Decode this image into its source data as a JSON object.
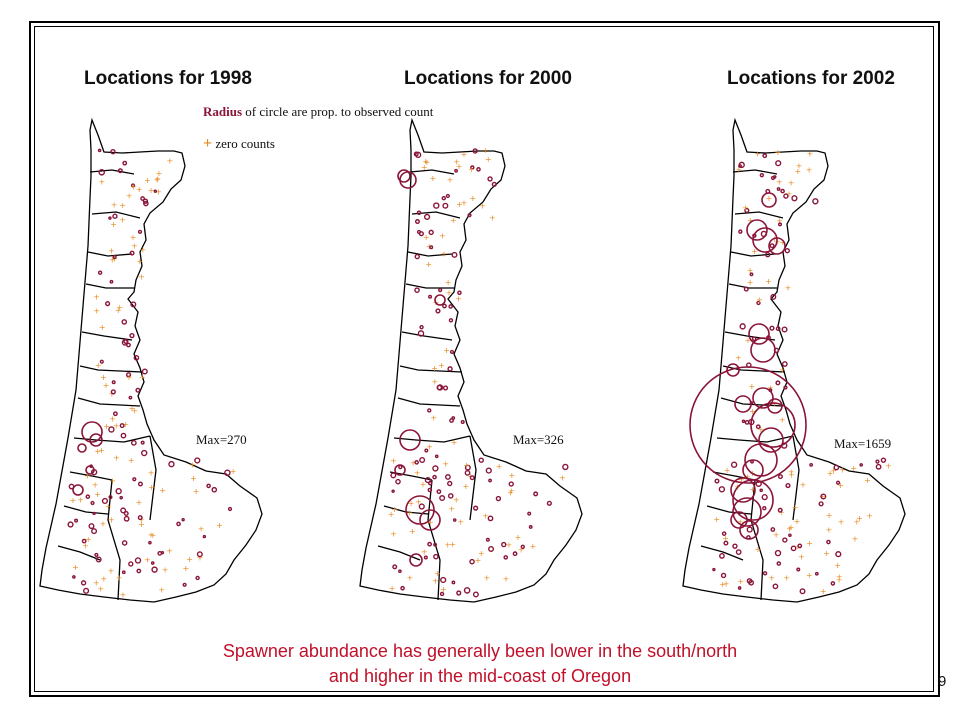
{
  "panels": [
    {
      "title": "Locations for 1998",
      "max_label": "Max=270",
      "max_count": 270
    },
    {
      "title": "Locations for 2000",
      "max_label": "Max=326",
      "max_count": 326
    },
    {
      "title": "Locations for 2002",
      "max_label": "Max=1659",
      "max_count": 1659
    }
  ],
  "legend": {
    "radius_word": "Radius",
    "radius_text": "of circle are prop. to observed count",
    "plus_symbol": "+",
    "zero_text": "zero counts"
  },
  "caption": {
    "line1": "Spawner abundance has generally been lower in the south/north",
    "line2": "and higher in the mid-coast of Oregon"
  },
  "page_number": "9",
  "colors": {
    "count_circle": "#8a1538",
    "zero_marker": "#e58a1f",
    "caption": "#c0102a",
    "outline": "#000000"
  }
}
